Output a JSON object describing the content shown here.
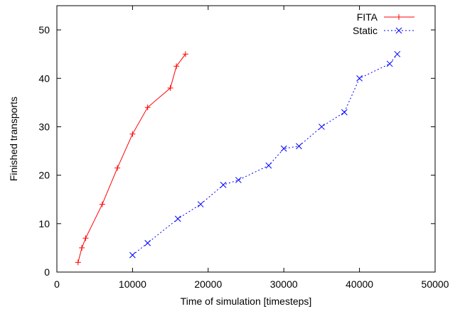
{
  "chart_data": {
    "type": "line",
    "title": "",
    "xlabel": "Time of simulation [timesteps]",
    "ylabel": "Finished transports",
    "xlim": [
      0,
      50000
    ],
    "ylim": [
      0,
      55
    ],
    "x_ticks": [
      0,
      10000,
      20000,
      30000,
      40000,
      50000
    ],
    "y_ticks": [
      0,
      10,
      20,
      30,
      40,
      50
    ],
    "grid": false,
    "legend_position": "top-right",
    "series": [
      {
        "name": "FITA",
        "color": "#ff0000",
        "line_style": "solid",
        "marker": "plus",
        "points": [
          [
            2800,
            2
          ],
          [
            3300,
            5
          ],
          [
            3800,
            7
          ],
          [
            6000,
            14
          ],
          [
            8000,
            21.5
          ],
          [
            10000,
            28.5
          ],
          [
            12000,
            34
          ],
          [
            15000,
            38
          ],
          [
            15800,
            42.5
          ],
          [
            17000,
            45
          ]
        ]
      },
      {
        "name": "Static",
        "color": "#0000ff",
        "line_style": "dotted",
        "marker": "cross",
        "points": [
          [
            10000,
            3.5
          ],
          [
            12000,
            6
          ],
          [
            16000,
            11
          ],
          [
            19000,
            14
          ],
          [
            22000,
            18
          ],
          [
            24000,
            19
          ],
          [
            28000,
            22
          ],
          [
            30000,
            25.5
          ],
          [
            32000,
            26
          ],
          [
            35000,
            30
          ],
          [
            38000,
            33
          ],
          [
            40000,
            40
          ],
          [
            44000,
            43
          ],
          [
            45000,
            45
          ]
        ]
      }
    ]
  }
}
